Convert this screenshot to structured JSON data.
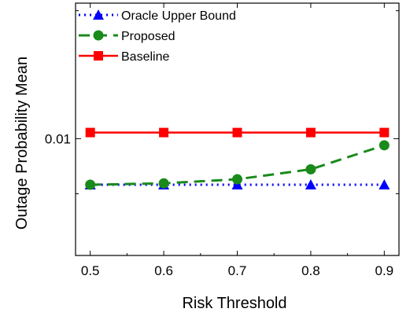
{
  "chart_data": {
    "type": "line",
    "xlabel": "Risk Threshold",
    "ylabel": "Outage Probability Mean",
    "y_scale": "log",
    "xlim": [
      0.48,
      0.92
    ],
    "ylim": [
      0.0023,
      0.055
    ],
    "x": [
      0.5,
      0.6,
      0.7,
      0.8,
      0.9
    ],
    "x_tick_labels": [
      "0.5",
      "0.6",
      "0.7",
      "0.8",
      "0.9"
    ],
    "y_tick_labels": [
      "0.01"
    ],
    "y_tick_values": [
      0.01
    ],
    "grid": false,
    "legend_placement": "top-left",
    "series": [
      {
        "name": "Oracle Upper Bound",
        "values": [
          0.0056,
          0.0056,
          0.0056,
          0.0056,
          0.0056
        ],
        "color": "#0000ff",
        "line_style": "dotted",
        "marker": "triangle"
      },
      {
        "name": "Proposed",
        "values": [
          0.0056,
          0.0057,
          0.006,
          0.0068,
          0.0092
        ],
        "color": "#1a8a1a",
        "line_style": "dashed",
        "marker": "circle"
      },
      {
        "name": "Baseline",
        "values": [
          0.0108,
          0.0108,
          0.0108,
          0.0108,
          0.0108
        ],
        "color": "#ff0000",
        "line_style": "solid",
        "marker": "square"
      }
    ]
  }
}
